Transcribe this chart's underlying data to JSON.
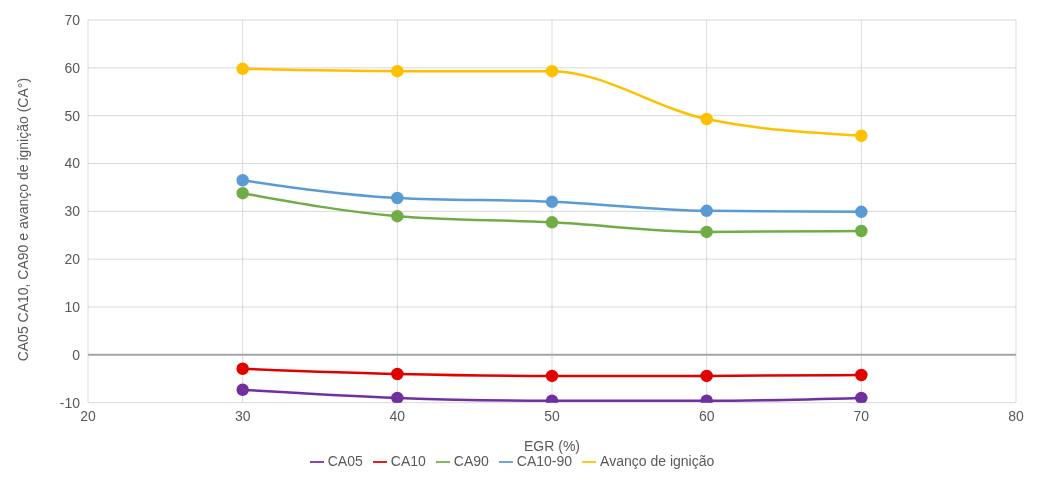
{
  "chart_data": {
    "type": "line",
    "xlabel": "EGR (%)",
    "ylabel": "CA05 CA10, CA90 e avanço de ignição (CA°)",
    "x": [
      30,
      40,
      50,
      60,
      70
    ],
    "series": [
      {
        "name": "CA05",
        "color": "#7030a0",
        "values": [
          -7.3,
          -9.0,
          -9.6,
          -9.6,
          -9.0
        ]
      },
      {
        "name": "CA10",
        "color": "#e00000",
        "values": [
          -2.9,
          -4.0,
          -4.4,
          -4.4,
          -4.2
        ]
      },
      {
        "name": "CA90",
        "color": "#70ad47",
        "values": [
          33.8,
          29.0,
          27.7,
          25.7,
          25.9
        ]
      },
      {
        "name": "CA10-90",
        "color": "#5b9bd5",
        "values": [
          36.5,
          32.8,
          32.0,
          30.1,
          29.9
        ]
      },
      {
        "name": "Avanço de ignição",
        "color": "#ffc000",
        "values": [
          59.8,
          59.3,
          59.3,
          49.3,
          45.8
        ]
      }
    ],
    "xlim": [
      20,
      80
    ],
    "xticks": [
      20,
      30,
      40,
      50,
      60,
      70,
      80
    ],
    "ylim": [
      -10,
      70
    ],
    "yticks": [
      -10,
      0,
      10,
      20,
      30,
      40,
      50,
      60,
      70
    ],
    "ref_lines": [
      {
        "axis": "y",
        "value": 0,
        "color": "#a6a6a6"
      }
    ],
    "grid": true,
    "legend": "bottom",
    "marker": "circle",
    "line_style": "solid"
  }
}
